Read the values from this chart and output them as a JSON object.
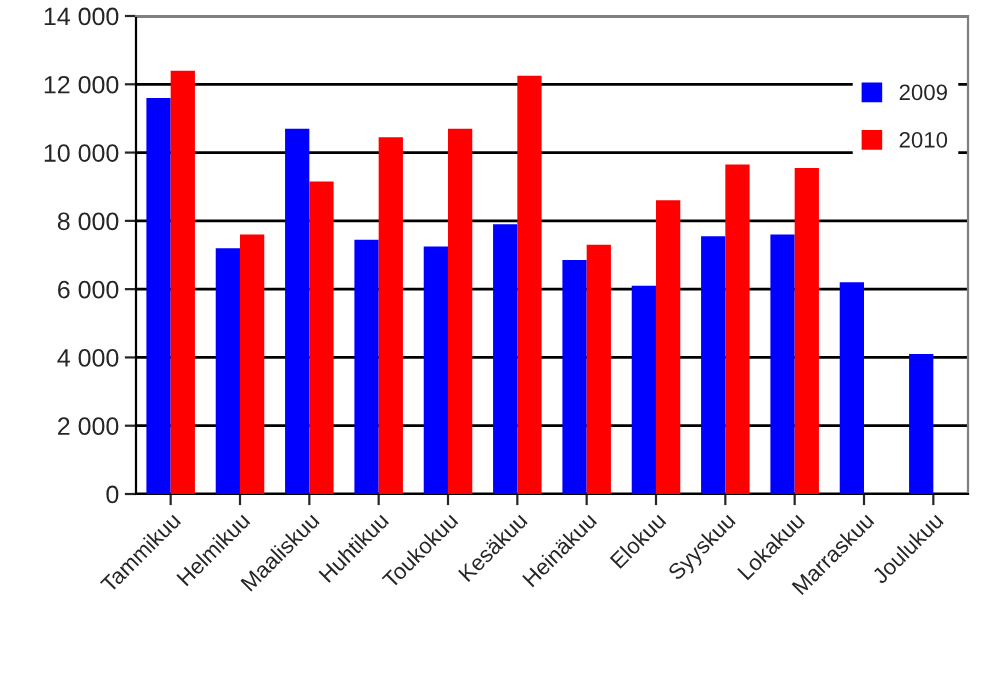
{
  "chart_data": {
    "type": "bar",
    "categories": [
      "Tammikuu",
      "Helmikuu",
      "Maaliskuu",
      "Huhtikuu",
      "Toukokuu",
      "Kesäkuu",
      "Heinäkuu",
      "Elokuu",
      "Syyskuu",
      "Lokakuu",
      "Marraskuu",
      "Joulukuu"
    ],
    "series": [
      {
        "name": "2009",
        "color": "#0000ff",
        "values": [
          11600,
          7200,
          10700,
          7450,
          7250,
          7900,
          6850,
          6100,
          7550,
          7600,
          6200,
          4100
        ]
      },
      {
        "name": "2010",
        "color": "#ff0000",
        "values": [
          12400,
          7600,
          9150,
          10450,
          10700,
          12250,
          7300,
          8600,
          9650,
          9550,
          null,
          null
        ]
      }
    ],
    "ylim": [
      0,
      14000
    ],
    "yticks": [
      {
        "value": 0,
        "label": "0"
      },
      {
        "value": 2000,
        "label": "2 000"
      },
      {
        "value": 4000,
        "label": "4 000"
      },
      {
        "value": 6000,
        "label": "6 000"
      },
      {
        "value": 8000,
        "label": "8 000"
      },
      {
        "value": 10000,
        "label": "10 000"
      },
      {
        "value": 12000,
        "label": "12 000"
      },
      {
        "value": 14000,
        "label": "14 000"
      }
    ],
    "grid": "y",
    "legend": "top right"
  }
}
